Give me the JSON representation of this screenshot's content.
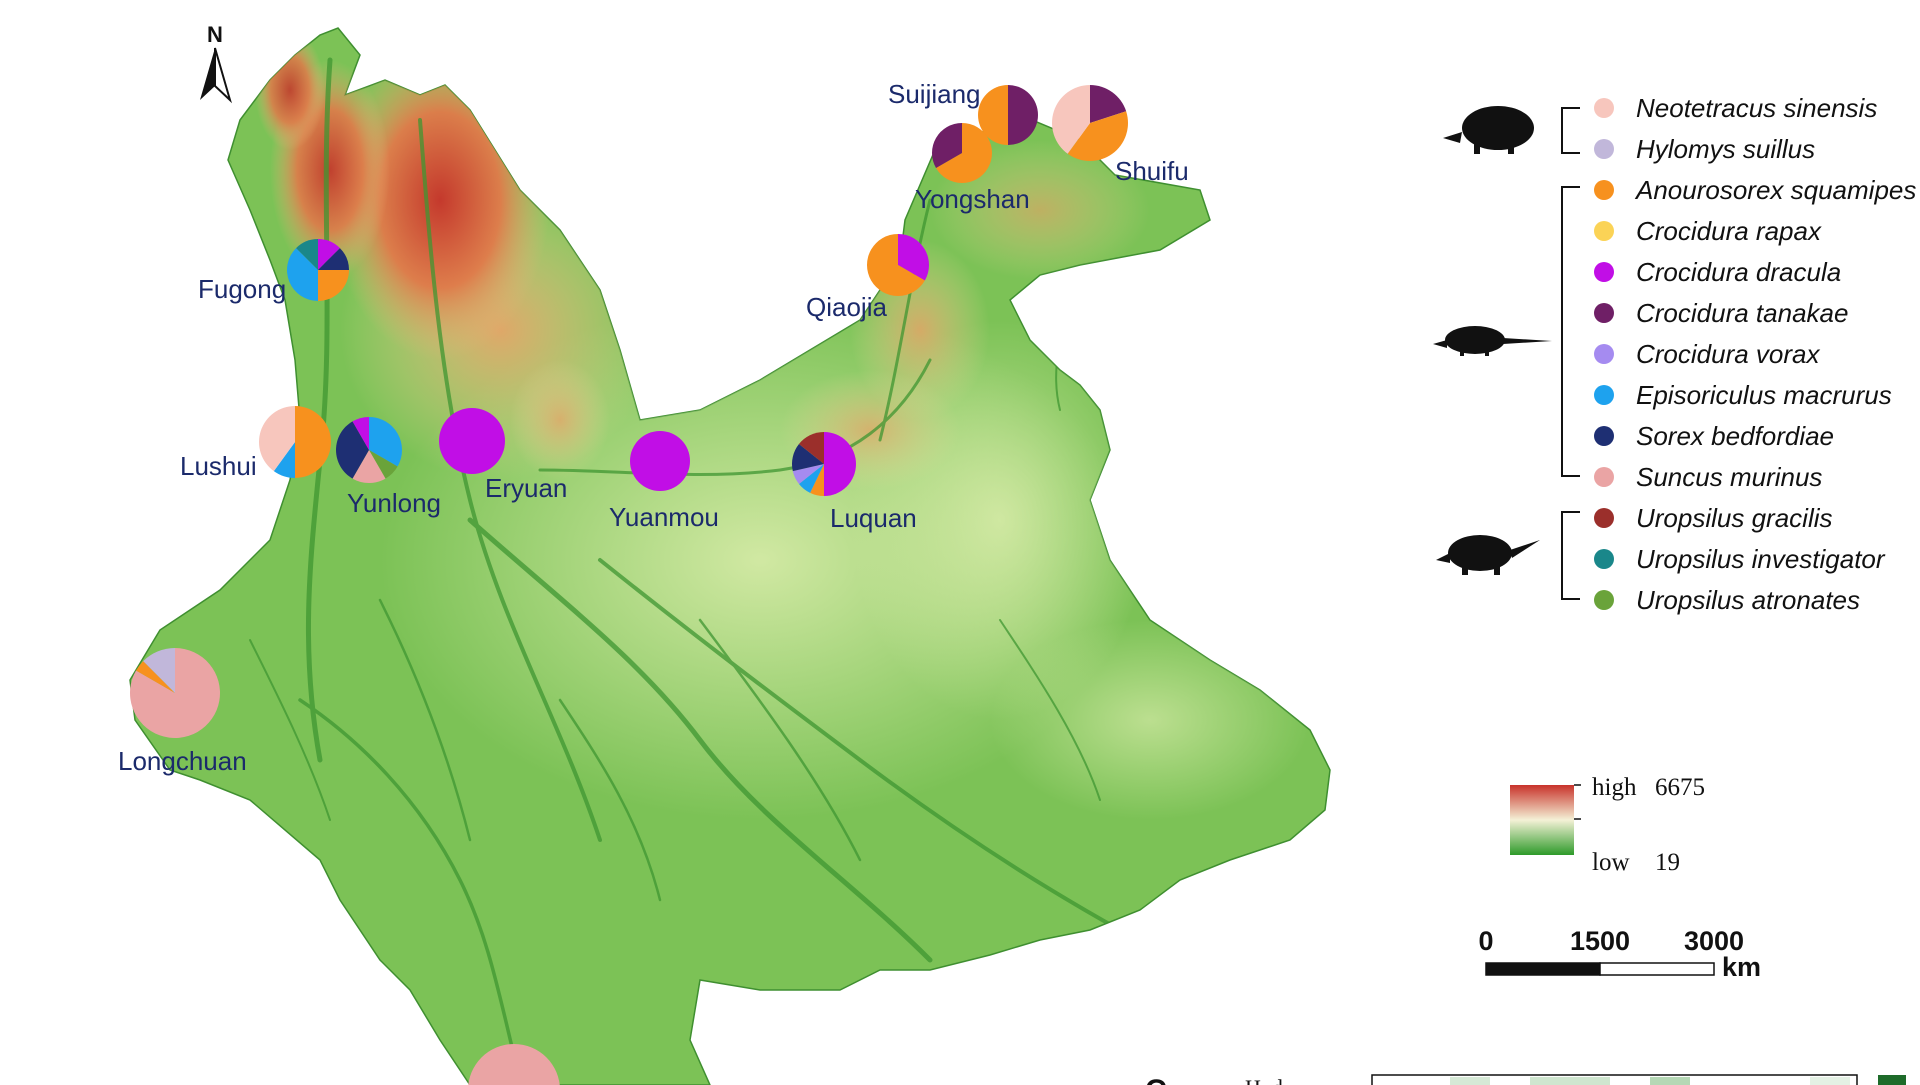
{
  "north_arrow": {
    "label": "N"
  },
  "sites": [
    {
      "name": "Suijiang",
      "counts": {
        "Crocidura tanakae": 1,
        "Anourosorex squamipes": 1
      }
    },
    {
      "name": "Shuifu",
      "counts": {
        "Crocidura tanakae": 1,
        "Anourosorex squamipes": 2,
        "Neotetracus sinensis": 2
      }
    },
    {
      "name": "Yongshan",
      "counts": {
        "Anourosorex squamipes": 2,
        "Crocidura tanakae": 1
      }
    },
    {
      "name": "Qiaojia",
      "counts": {
        "Crocidura dracula": 1,
        "Anourosorex squamipes": 2
      }
    },
    {
      "name": "Fugong",
      "counts": {
        "Crocidura dracula": 1,
        "Sorex bedfordiae": 1,
        "Anourosorex squamipes": 2,
        "Episoriculus macrurus": 3,
        "Uropsilus investigator": 1
      }
    },
    {
      "name": "Lushui",
      "counts": {
        "Anourosorex squamipes": 5,
        "Episoriculus macrurus": 1,
        "Neotetracus sinensis": 4
      }
    },
    {
      "name": "Yunlong",
      "counts": {
        "Episoriculus macrurus": 4,
        "Uropsilus atronates": 1,
        "Suncus murinus": 2,
        "Sorex bedfordiae": 4,
        "Crocidura dracula": 1
      }
    },
    {
      "name": "Eryuan",
      "counts": {
        "Crocidura dracula": 1
      }
    },
    {
      "name": "Yuanmou",
      "counts": {
        "Crocidura dracula": 1
      }
    },
    {
      "name": "Luquan",
      "counts": {
        "Crocidura dracula": 7,
        "Anourosorex squamipes": 1,
        "Episoriculus macrurus": 1,
        "Crocidura vorax": 1,
        "Sorex bedfordiae": 2,
        "Uropsilus gracilis": 2
      }
    },
    {
      "name": "Longchuan",
      "counts": {
        "Suncus murinus": 20,
        "Anourosorex squamipes": 1,
        "Hylomys suillus": 3
      }
    },
    {
      "name": "",
      "counts": {
        "Suncus murinus": 1
      }
    }
  ],
  "species": [
    {
      "name": "Neotetracus sinensis",
      "color": "#f7c6bd",
      "group": "hedgehog"
    },
    {
      "name": "Hylomys suillus",
      "color": "#c1b7da",
      "group": "hedgehog"
    },
    {
      "name": "Anourosorex squamipes",
      "color": "#f7911e",
      "group": "shrew"
    },
    {
      "name": "Crocidura rapax",
      "color": "#fbd356",
      "group": "shrew"
    },
    {
      "name": "Crocidura dracula",
      "color": "#c10ee6",
      "group": "shrew"
    },
    {
      "name": "Crocidura tanakae",
      "color": "#6f1f66",
      "group": "shrew"
    },
    {
      "name": "Crocidura vorax",
      "color": "#a58bf0",
      "group": "shrew"
    },
    {
      "name": "Episoriculus macrurus",
      "color": "#1ea2ee",
      "group": "shrew"
    },
    {
      "name": "Sorex bedfordiae",
      "color": "#1e2f73",
      "group": "shrew"
    },
    {
      "name": "Suncus murinus",
      "color": "#eaa4a4",
      "group": "shrew"
    },
    {
      "name": "Uropsilus gracilis",
      "color": "#9b2f2b",
      "group": "mole"
    },
    {
      "name": "Uropsilus investigator",
      "color": "#1a878a",
      "group": "mole"
    },
    {
      "name": "Uropsilus atronates",
      "color": "#6aa33a",
      "group": "mole"
    }
  ],
  "elevation_legend": {
    "high_label": "high",
    "high_value": "6675",
    "low_label": "low",
    "low_value": "19",
    "colors": [
      "#c8322a",
      "#f4f1d6",
      "#2e9a2a"
    ]
  },
  "scale_bar": {
    "ticks": [
      "0",
      "1500",
      "3000"
    ],
    "unit": "km"
  },
  "next_panel": {
    "letter": "C",
    "axis_label": "H. d."
  },
  "map_colors": {
    "low": "#3ea033",
    "mid": "#cfe79a",
    "high": "#c8322a",
    "river": "#4c9a3a"
  }
}
